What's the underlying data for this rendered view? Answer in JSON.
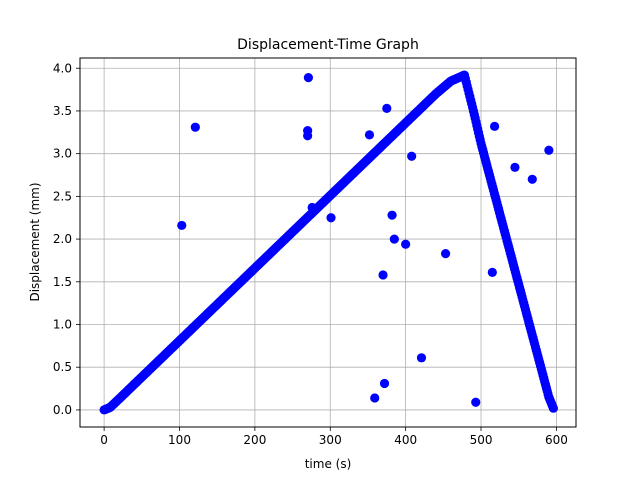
{
  "chart_data": {
    "type": "scatter",
    "title": "Displacement-Time Graph",
    "xlabel": "time (s)",
    "ylabel": "Displacement (mm)",
    "xlim": [
      -32,
      626
    ],
    "ylim": [
      -0.2,
      4.12
    ],
    "xticks": [
      0,
      100,
      200,
      300,
      400,
      500,
      600
    ],
    "xtick_labels": [
      "0",
      "100",
      "200",
      "300",
      "400",
      "500",
      "600"
    ],
    "yticks": [
      0.0,
      0.5,
      1.0,
      1.5,
      2.0,
      2.5,
      3.0,
      3.5,
      4.0
    ],
    "ytick_labels": [
      "0.0",
      "0.5",
      "1.0",
      "1.5",
      "2.0",
      "2.5",
      "3.0",
      "3.5",
      "4.0"
    ],
    "grid": true,
    "marker_color": "#0000ff",
    "series": [
      {
        "x": [
          0,
          8,
          20,
          40,
          60,
          80,
          100,
          120,
          140,
          160,
          180,
          200,
          220,
          240,
          260,
          280,
          300,
          320,
          340,
          360,
          380,
          400,
          420,
          440,
          460,
          478,
          490,
          500,
          510,
          520,
          530,
          540,
          550,
          560,
          570,
          580,
          590,
          596
        ],
        "y": [
          0.0,
          0.03,
          0.13,
          0.3,
          0.47,
          0.64,
          0.81,
          0.98,
          1.15,
          1.32,
          1.49,
          1.66,
          1.83,
          2.0,
          2.17,
          2.34,
          2.51,
          2.68,
          2.85,
          3.02,
          3.19,
          3.36,
          3.53,
          3.7,
          3.85,
          3.92,
          3.5,
          3.12,
          2.79,
          2.46,
          2.13,
          1.8,
          1.47,
          1.14,
          0.81,
          0.48,
          0.15,
          0.02
        ]
      },
      {
        "x": [
          103,
          121,
          271,
          270,
          270,
          276,
          301,
          352,
          375,
          408,
          382,
          385,
          400,
          370,
          453,
          518,
          545,
          568,
          590,
          515,
          421,
          372,
          359,
          493
        ],
        "y": [
          2.16,
          3.31,
          3.89,
          3.27,
          3.21,
          2.37,
          2.25,
          3.22,
          3.53,
          2.97,
          2.28,
          2.0,
          1.94,
          1.58,
          1.83,
          3.32,
          2.84,
          2.7,
          3.04,
          1.61,
          0.61,
          0.31,
          0.14,
          0.09
        ]
      }
    ]
  }
}
